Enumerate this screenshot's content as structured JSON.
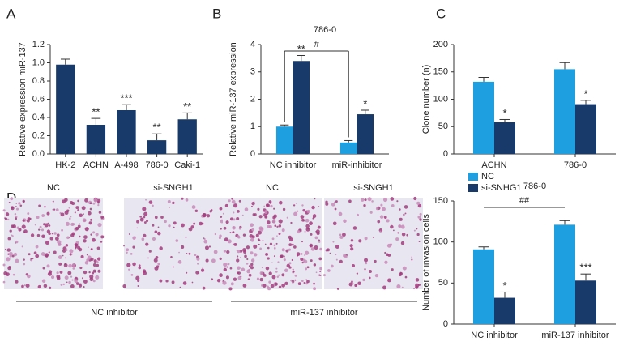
{
  "chart_data": [
    {
      "type": "bar",
      "panel": "A",
      "ylabel": "Relative expression miR-137",
      "categories": [
        "HK-2",
        "ACHN",
        "A-498",
        "786-0",
        "Caki-1"
      ],
      "values": [
        0.98,
        0.32,
        0.48,
        0.15,
        0.38
      ],
      "errors": [
        0.06,
        0.07,
        0.06,
        0.07,
        0.07
      ],
      "annotations": [
        null,
        "**",
        "***",
        "**",
        "**"
      ],
      "color": "#173a6b",
      "ylim": [
        0,
        1.2
      ],
      "yticks": [
        {
          "value": 0,
          "label": "0.0"
        },
        0.2,
        0.4,
        0.6,
        0.8,
        {
          "value": 1,
          "label": "1.0"
        },
        1.2
      ]
    },
    {
      "type": "bar",
      "panel": "B",
      "title": "786-0",
      "ylabel": "Relative miR-137 expression",
      "categories": [
        "NC inhibitor",
        "miR-inhibitor"
      ],
      "series": [
        {
          "color": "#1ea0e0",
          "values": [
            1.0,
            0.42
          ],
          "errors": [
            0.06,
            0.07
          ]
        },
        {
          "color": "#173a6b",
          "values": [
            3.4,
            1.45
          ],
          "errors": [
            0.2,
            0.15
          ],
          "annotations": [
            "**",
            "*"
          ]
        }
      ],
      "comparison": "#",
      "ylim": [
        0,
        4
      ],
      "yticks": [
        0,
        1,
        2,
        3,
        4
      ]
    },
    {
      "type": "bar",
      "panel": "C",
      "ylabel": "Clone number (n)",
      "categories": [
        "ACHN",
        "786-0"
      ],
      "series": [
        {
          "name": "NC",
          "color": "#1ea0e0",
          "values": [
            132,
            155
          ],
          "errors": [
            8,
            12
          ]
        },
        {
          "name": "si-SNHG1",
          "color": "#173a6b",
          "values": [
            58,
            91
          ],
          "errors": [
            5,
            7
          ],
          "annotations": [
            "*",
            "*"
          ]
        }
      ],
      "legend": "below",
      "ylim": [
        0,
        200
      ],
      "yticks": [
        0,
        50,
        100,
        150,
        200
      ]
    },
    {
      "type": "bar",
      "title": "786-0",
      "ylabel": "Number of invasion cells",
      "categories": [
        "NC inhibitor",
        "miR-137 inhibitor"
      ],
      "series": [
        {
          "color": "#1ea0e0",
          "values": [
            91,
            121
          ],
          "errors": [
            3,
            5
          ]
        },
        {
          "color": "#173a6b",
          "values": [
            32,
            53
          ],
          "errors": [
            7,
            8
          ],
          "annotations": [
            "*",
            "***"
          ]
        }
      ],
      "comparison": "##",
      "ylim": [
        0,
        150
      ],
      "yticks": [
        0,
        50,
        100,
        150
      ]
    }
  ],
  "images": {
    "panel": "D",
    "columns": [
      "NC",
      "si-SNGH1",
      "NC",
      "si-SNGH1"
    ],
    "groups": [
      "NC inhibitor",
      "miR-137 inhibitor"
    ]
  }
}
